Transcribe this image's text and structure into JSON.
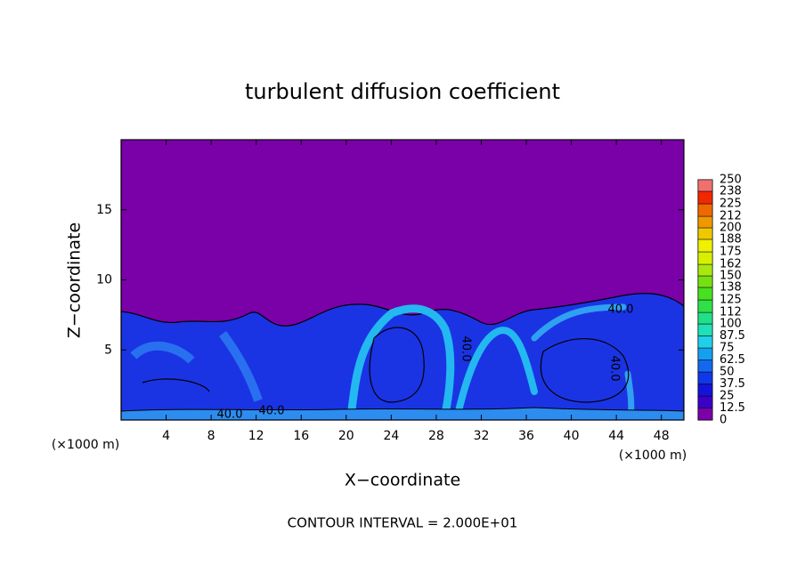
{
  "chart_data": {
    "type": "contour",
    "title": "turbulent diffusion coefficient",
    "xlabel": "X−coordinate",
    "ylabel": "Z−coordinate",
    "x_unit": "(×1000 m)",
    "footer": "CONTOUR INTERVAL = 2.000E+01",
    "xlim": [
      0,
      50
    ],
    "xticks": [
      4,
      8,
      12,
      16,
      20,
      24,
      28,
      32,
      36,
      40,
      44,
      48
    ],
    "ylim": [
      0,
      20
    ],
    "yticks": [
      5,
      10,
      15
    ],
    "colorbar_ticks": [
      0,
      12.5,
      25,
      37.5,
      50,
      62.5,
      75,
      87.5,
      100,
      112,
      125,
      138,
      150,
      162,
      175,
      188,
      200,
      212,
      225,
      238,
      250
    ],
    "colorscale": [
      "#7a00a8",
      "#3a00c8",
      "#1414d8",
      "#1038e8",
      "#1468f0",
      "#14a0f0",
      "#20d0e8",
      "#20e0b8",
      "#20e088",
      "#30e048",
      "#48e020",
      "#78e010",
      "#a8e810",
      "#d8f000",
      "#f0f000",
      "#f0c800",
      "#f09800",
      "#f06800",
      "#f02800",
      "#f07070"
    ],
    "contour_labels": [
      "40.0",
      "40.0",
      "40.0",
      "40.0",
      "40.0"
    ]
  }
}
